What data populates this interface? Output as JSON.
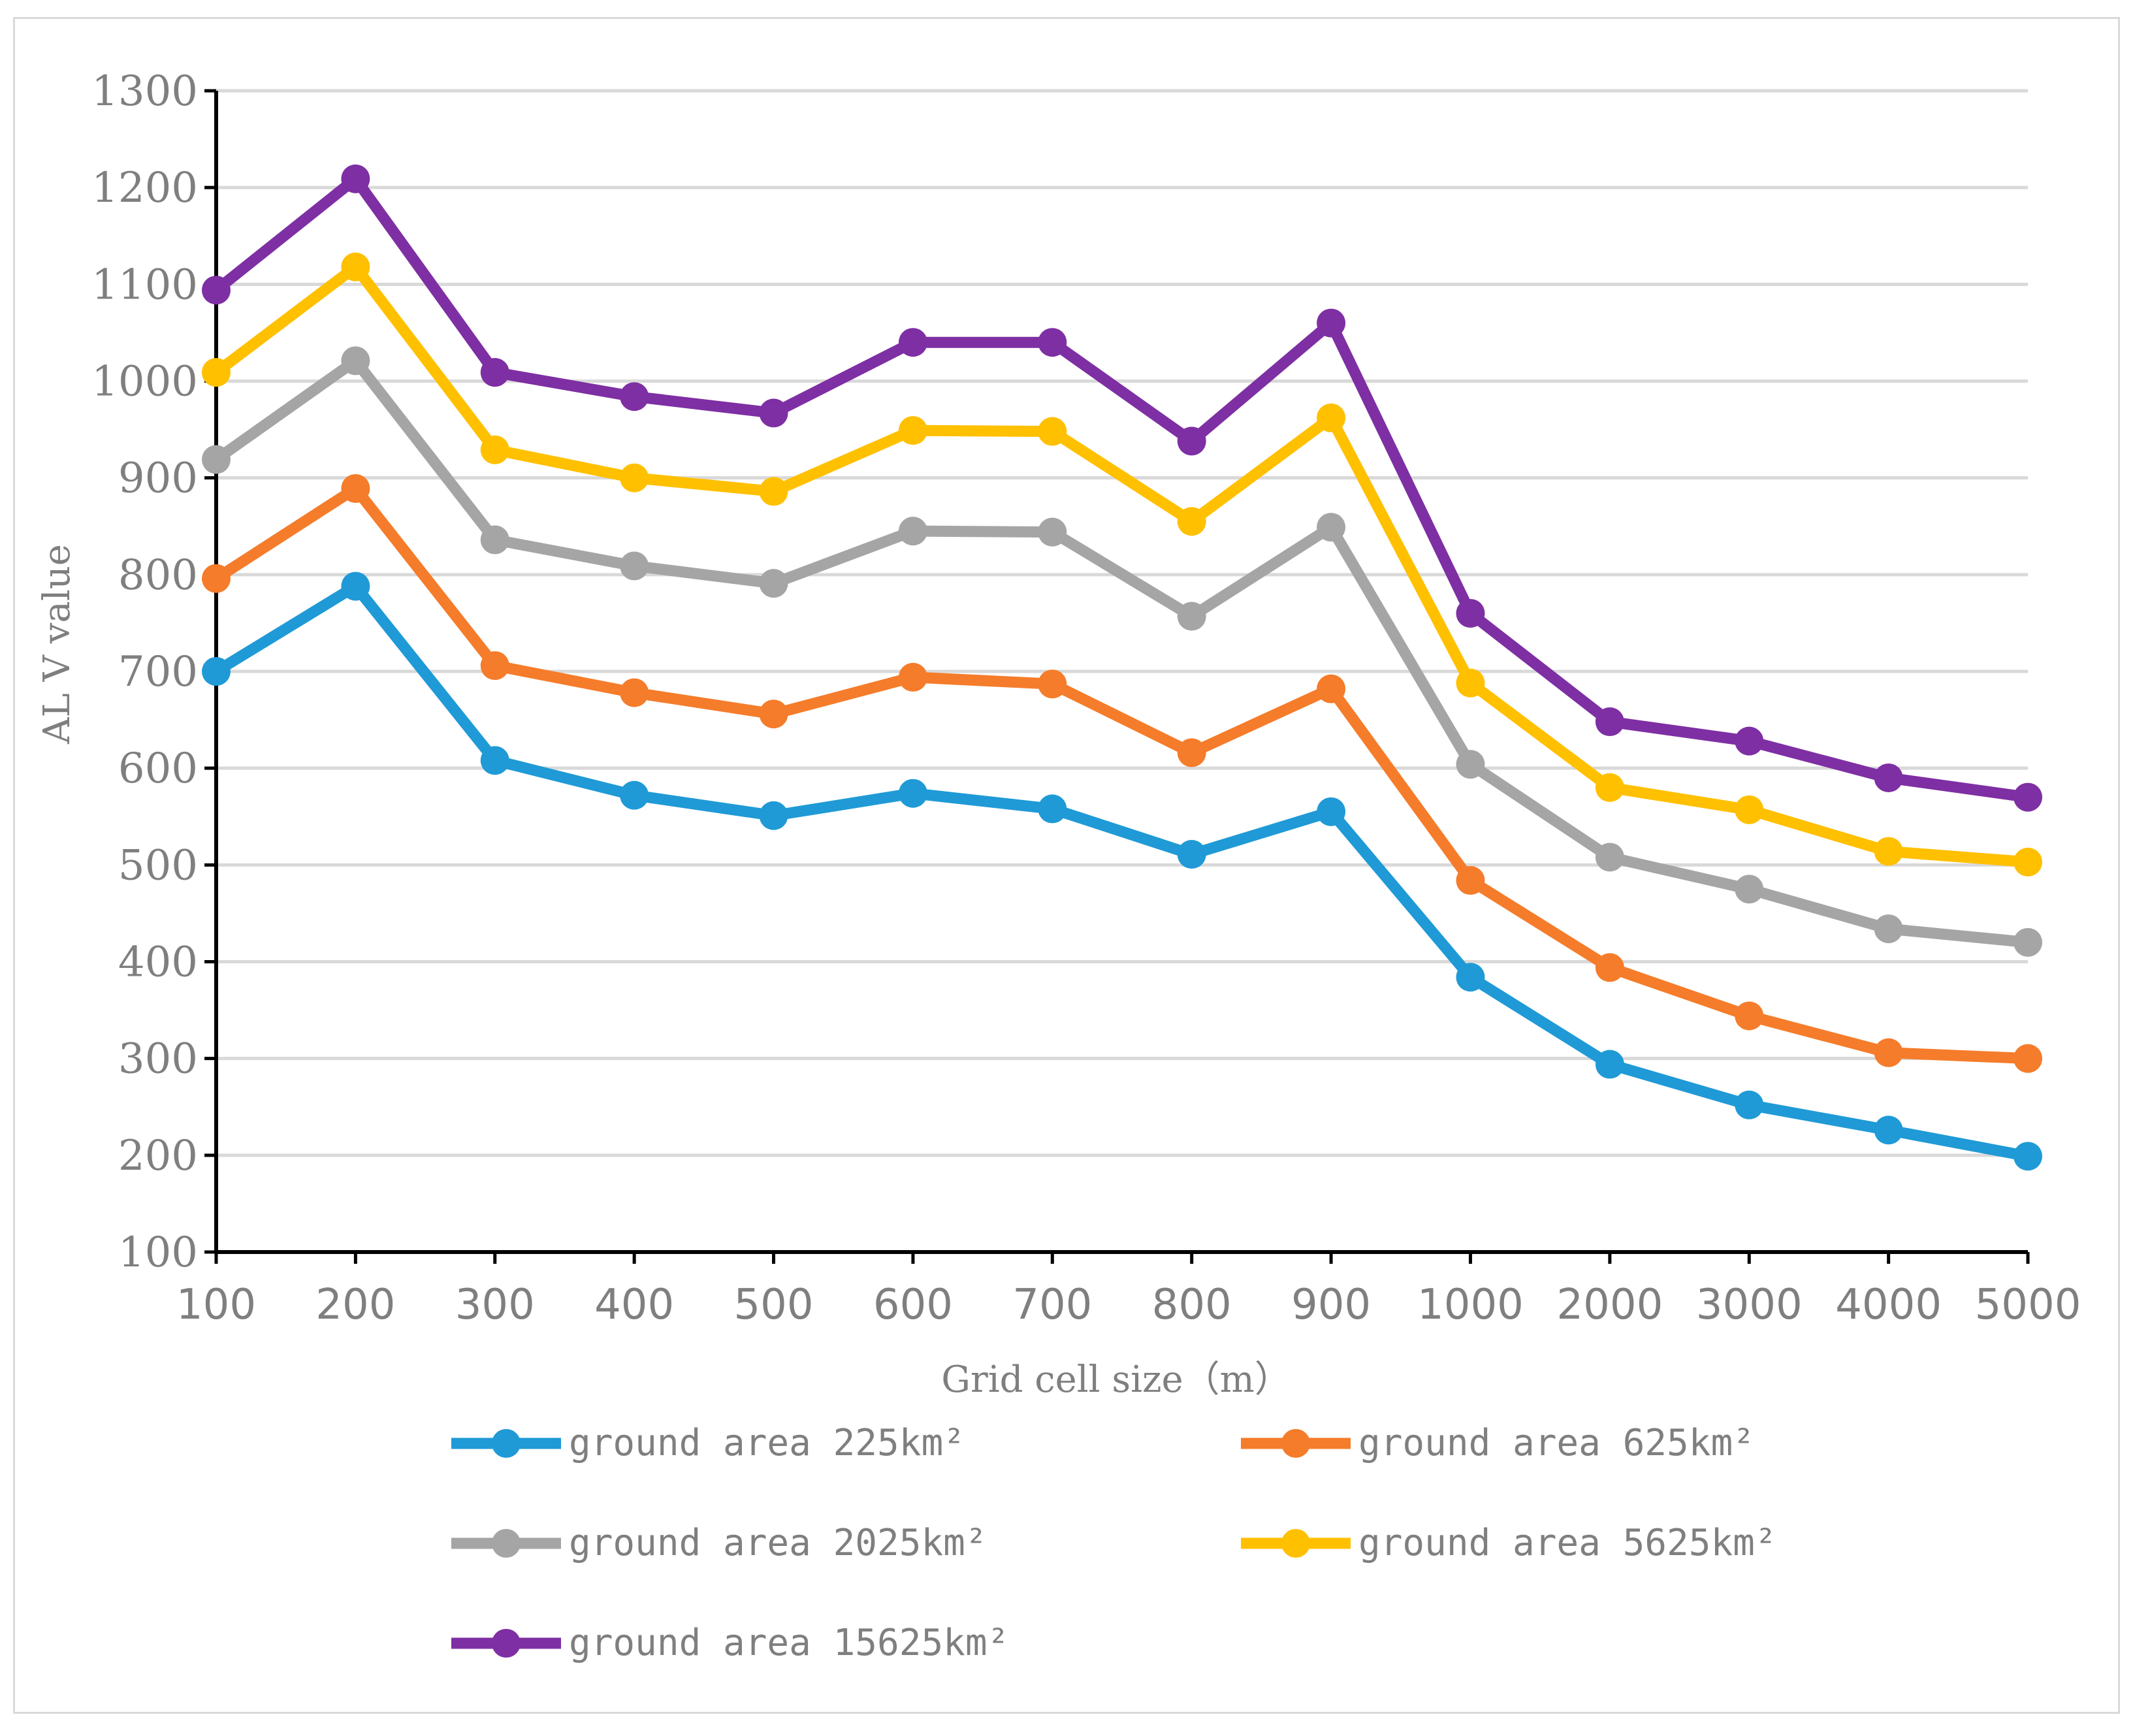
{
  "chart_data": {
    "type": "line",
    "title": "",
    "xlabel": "Grid cell size（m）",
    "ylabel": "AL V value",
    "categories": [
      "100",
      "200",
      "300",
      "400",
      "500",
      "600",
      "700",
      "800",
      "900",
      "1000",
      "2000",
      "3000",
      "4000",
      "5000"
    ],
    "ylim": [
      100,
      1300
    ],
    "yticks": [
      100,
      200,
      300,
      400,
      500,
      600,
      700,
      800,
      900,
      1000,
      1100,
      1200,
      1300
    ],
    "grid": true,
    "legend_position": "bottom",
    "series": [
      {
        "name": "ground area 225km²",
        "color": "#1f9ad6",
        "values": [
          700,
          788,
          608,
          572,
          551,
          574,
          558,
          511,
          555,
          384,
          294,
          252,
          226,
          199
        ]
      },
      {
        "name": "ground area 625km²",
        "color": "#f57c2a",
        "values": [
          796,
          889,
          706,
          678,
          656,
          694,
          687,
          616,
          682,
          484,
          394,
          344,
          306,
          300
        ]
      },
      {
        "name": "ground area 2025km²",
        "color": "#a5a5a5",
        "values": [
          919,
          1021,
          836,
          809,
          791,
          845,
          844,
          757,
          849,
          604,
          508,
          475,
          434,
          420
        ]
      },
      {
        "name": "ground area 5625km²",
        "color": "#ffc000",
        "values": [
          1009,
          1118,
          929,
          900,
          886,
          949,
          948,
          855,
          962,
          688,
          580,
          557,
          514,
          503
        ]
      },
      {
        "name": "ground area 15625km²",
        "color": "#7e2fa3",
        "values": [
          1094,
          1209,
          1009,
          984,
          967,
          1040,
          1040,
          938,
          1060,
          760,
          648,
          628,
          590,
          570
        ]
      }
    ]
  }
}
